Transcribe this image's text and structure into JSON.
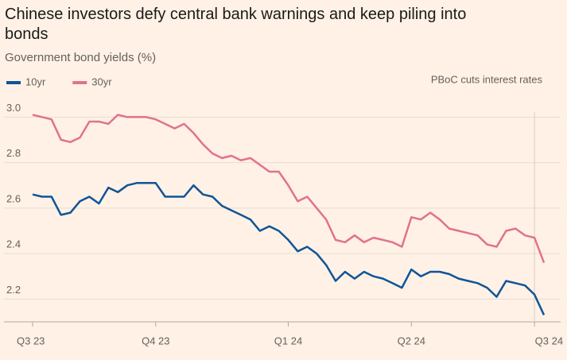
{
  "chart_data": {
    "type": "line",
    "title": "Chinese investors defy central bank warnings and keep piling into bonds",
    "subtitle": "Government bond yields (%)",
    "annotation": "PBoC cuts interest rates",
    "categories": [
      "Q3 23",
      null,
      null,
      null,
      null,
      null,
      null,
      null,
      null,
      null,
      null,
      null,
      null,
      "Q4 23",
      null,
      null,
      null,
      null,
      null,
      null,
      null,
      null,
      null,
      null,
      null,
      null,
      null,
      "Q1 24",
      null,
      null,
      null,
      null,
      null,
      null,
      null,
      null,
      null,
      null,
      null,
      null,
      "Q2 24",
      null,
      null,
      null,
      null,
      null,
      null,
      null,
      null,
      null,
      null,
      null,
      null,
      "Q3 24",
      null
    ],
    "series": [
      {
        "name": "10yr",
        "color": "#0f5499",
        "values": [
          2.66,
          2.65,
          2.65,
          2.57,
          2.58,
          2.63,
          2.65,
          2.62,
          2.69,
          2.67,
          2.7,
          2.71,
          2.71,
          2.71,
          2.65,
          2.65,
          2.65,
          2.7,
          2.66,
          2.65,
          2.61,
          2.59,
          2.57,
          2.55,
          2.5,
          2.52,
          2.5,
          2.46,
          2.41,
          2.43,
          2.4,
          2.35,
          2.28,
          2.32,
          2.29,
          2.32,
          2.3,
          2.29,
          2.27,
          2.25,
          2.33,
          2.3,
          2.32,
          2.32,
          2.31,
          2.29,
          2.28,
          2.27,
          2.25,
          2.21,
          2.28,
          2.27,
          2.26,
          2.22,
          2.13
        ]
      },
      {
        "name": "30yr",
        "color": "#e0728f",
        "values": [
          3.01,
          3.0,
          2.99,
          2.9,
          2.89,
          2.91,
          2.98,
          2.98,
          2.97,
          3.01,
          3.0,
          3.0,
          3.0,
          2.99,
          2.97,
          2.95,
          2.97,
          2.93,
          2.88,
          2.84,
          2.82,
          2.83,
          2.81,
          2.82,
          2.79,
          2.76,
          2.76,
          2.7,
          2.63,
          2.65,
          2.6,
          2.55,
          2.46,
          2.45,
          2.48,
          2.45,
          2.47,
          2.46,
          2.45,
          2.43,
          2.56,
          2.55,
          2.58,
          2.55,
          2.51,
          2.5,
          2.49,
          2.48,
          2.44,
          2.43,
          2.5,
          2.51,
          2.48,
          2.47,
          2.36
        ]
      }
    ],
    "ylim": [
      2.1,
      3.05
    ],
    "yticks": [
      {
        "value": 3,
        "label": "3.0"
      },
      2.8,
      2.6,
      2.4,
      2.2
    ],
    "grid": true
  }
}
